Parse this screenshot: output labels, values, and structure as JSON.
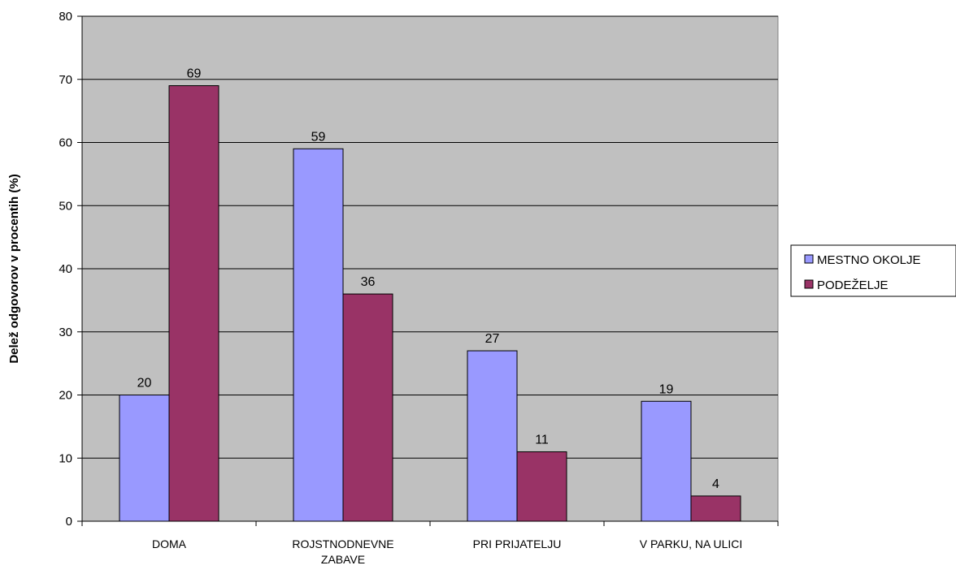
{
  "chart_data": {
    "type": "bar",
    "title": "",
    "xlabel": "",
    "ylabel": "Delež odgovorov v procentih (%)",
    "ylim": [
      0,
      80
    ],
    "yticks": [
      0,
      10,
      20,
      30,
      40,
      50,
      60,
      70,
      80
    ],
    "grid": true,
    "legend_position": "right",
    "categories": [
      [
        "DOMA"
      ],
      [
        "ROJSTNODNEVNE",
        "ZABAVE"
      ],
      [
        "PRI PRIJATELJU"
      ],
      [
        "V PARKU, NA ULICI"
      ]
    ],
    "series": [
      {
        "name": "MESTNO OKOLJE",
        "color": "#9999FF",
        "values": [
          20,
          59,
          27,
          19
        ]
      },
      {
        "name": "PODEŽELJE",
        "color": "#993366",
        "values": [
          69,
          36,
          11,
          4
        ]
      }
    ],
    "plot_background": "#C0C0C0",
    "data_labels": true
  }
}
